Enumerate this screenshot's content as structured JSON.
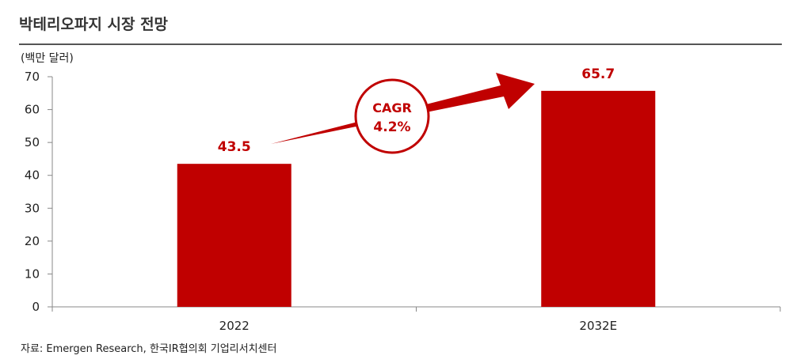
{
  "title": "박테리오파지 시장 전망",
  "unit_label": "(백만 달러)",
  "source": "자료: Emergen Research, 한국IR협의회 기업리서치센터",
  "cagr": {
    "label": "CAGR",
    "value": "4.2%"
  },
  "colors": {
    "bar": "#c00000",
    "arrow": "#c00000",
    "text": "#222222",
    "axis": "#888888"
  },
  "chart_data": {
    "type": "bar",
    "categories": [
      "2022",
      "2032E"
    ],
    "values": [
      43.5,
      65.7
    ],
    "data_labels": [
      "43.5",
      "65.7"
    ],
    "title": "박테리오파지 시장 전망",
    "xlabel": "",
    "ylabel": "(백만 달러)",
    "ylim": [
      0,
      70
    ],
    "yticks": [
      0,
      10,
      20,
      30,
      40,
      50,
      60,
      70
    ],
    "grid": false,
    "legend": "none"
  }
}
